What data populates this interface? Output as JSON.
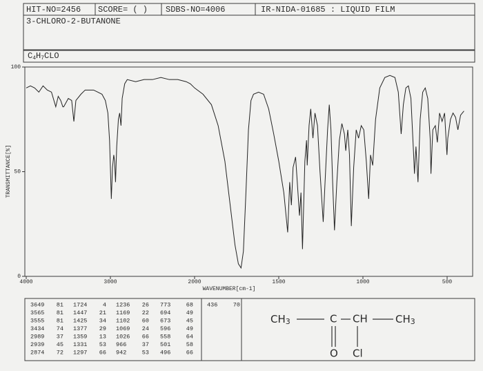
{
  "header": {
    "hit_no": "HIT-NO=2456",
    "score": "SCORE=  (      )",
    "sdbs_no": "SDBS-NO=4006",
    "sample": "IR-NIDA-01685 : LIQUID FILM",
    "compound": "3-CHLORO-2-BUTANONE",
    "formula": [
      "C",
      "4",
      "H",
      "7",
      "CLO"
    ]
  },
  "chart_data": {
    "type": "line",
    "xlabel": "WAVENUMBER[cm-1]",
    "ylabel": "TRANSMITTANCE[%]",
    "color": "#222222",
    "xlim": [
      4000,
      400
    ],
    "xticks": [
      4000,
      3000,
      2000,
      1500,
      1000,
      500
    ],
    "ylim": [
      0,
      100
    ],
    "yticks": [
      0,
      50,
      100
    ],
    "x": [
      4000,
      3950,
      3900,
      3850,
      3800,
      3750,
      3700,
      3649,
      3620,
      3590,
      3565,
      3555,
      3500,
      3460,
      3434,
      3410,
      3350,
      3300,
      3200,
      3150,
      3100,
      3060,
      3030,
      3010,
      2989,
      2975,
      2960,
      2950,
      2939,
      2925,
      2905,
      2890,
      2874,
      2860,
      2830,
      2800,
      2700,
      2600,
      2500,
      2400,
      2300,
      2200,
      2100,
      2050,
      2000,
      1950,
      1900,
      1860,
      1820,
      1790,
      1760,
      1740,
      1724,
      1710,
      1695,
      1680,
      1665,
      1650,
      1620,
      1590,
      1560,
      1530,
      1500,
      1470,
      1447,
      1435,
      1425,
      1415,
      1400,
      1390,
      1377,
      1368,
      1359,
      1345,
      1335,
      1331,
      1320,
      1310,
      1297,
      1285,
      1270,
      1255,
      1236,
      1225,
      1210,
      1200,
      1190,
      1180,
      1169,
      1155,
      1140,
      1125,
      1110,
      1102,
      1090,
      1080,
      1069,
      1055,
      1040,
      1026,
      1010,
      995,
      980,
      966,
      955,
      942,
      925,
      900,
      870,
      840,
      810,
      790,
      773,
      760,
      745,
      730,
      715,
      700,
      694,
      685,
      673,
      660,
      645,
      630,
      615,
      600,
      596,
      585,
      570,
      558,
      545,
      530,
      515,
      501,
      496,
      480,
      465,
      450,
      436,
      420,
      400
    ],
    "values": [
      90,
      91,
      90,
      88,
      91,
      89,
      88,
      81,
      86,
      84,
      81,
      81,
      85,
      84,
      74,
      84,
      87,
      89,
      89,
      88,
      87,
      84,
      78,
      65,
      37,
      52,
      58,
      55,
      45,
      62,
      75,
      78,
      72,
      85,
      92,
      94,
      93,
      94,
      94,
      95,
      94,
      94,
      93,
      92,
      90,
      87,
      82,
      72,
      55,
      35,
      15,
      6,
      4,
      12,
      40,
      70,
      84,
      87,
      88,
      87,
      80,
      68,
      55,
      40,
      21,
      45,
      34,
      52,
      57,
      45,
      29,
      40,
      13,
      55,
      65,
      53,
      72,
      80,
      66,
      78,
      72,
      50,
      26,
      45,
      70,
      82,
      70,
      45,
      22,
      45,
      65,
      73,
      68,
      60,
      70,
      58,
      24,
      52,
      70,
      66,
      72,
      70,
      55,
      37,
      58,
      53,
      75,
      90,
      95,
      96,
      95,
      88,
      68,
      82,
      90,
      91,
      85,
      60,
      49,
      62,
      45,
      75,
      88,
      90,
      85,
      65,
      49,
      70,
      72,
      64,
      78,
      74,
      78,
      58,
      66,
      75,
      78,
      76,
      70,
      77,
      79
    ]
  },
  "peak_table": [
    [
      [
        3649,
        81
      ],
      [
        3565,
        81
      ],
      [
        3555,
        81
      ],
      [
        3434,
        74
      ],
      [
        2989,
        37
      ],
      [
        2939,
        45
      ],
      [
        2874,
        72
      ]
    ],
    [
      [
        1724,
        4
      ],
      [
        1447,
        21
      ],
      [
        1425,
        34
      ],
      [
        1377,
        29
      ],
      [
        1359,
        13
      ],
      [
        1331,
        53
      ],
      [
        1297,
        66
      ]
    ],
    [
      [
        1236,
        26
      ],
      [
        1169,
        22
      ],
      [
        1102,
        60
      ],
      [
        1069,
        24
      ],
      [
        1026,
        66
      ],
      [
        966,
        37
      ],
      [
        942,
        53
      ]
    ],
    [
      [
        773,
        68
      ],
      [
        694,
        49
      ],
      [
        673,
        45
      ],
      [
        596,
        49
      ],
      [
        558,
        64
      ],
      [
        501,
        58
      ],
      [
        496,
        66
      ]
    ],
    [
      [
        436,
        70
      ]
    ]
  ],
  "structure": {
    "groups": [
      {
        "text": "CH",
        "sub": "3"
      },
      {
        "text": "C"
      },
      {
        "text": "CH"
      },
      {
        "text": "CH",
        "sub": "3"
      }
    ],
    "oxygen": "O",
    "chlorine": "Cl"
  }
}
